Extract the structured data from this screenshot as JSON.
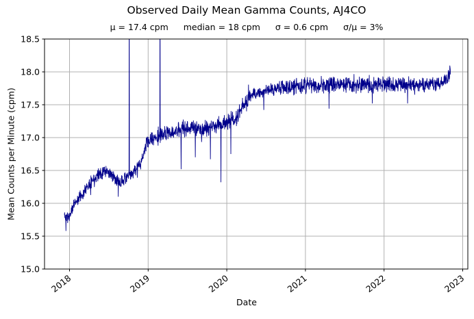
{
  "chart_data": {
    "type": "line",
    "title": "Observed Daily Mean Gamma Counts, AJ4CO",
    "stats": [
      "μ = 17.4 cpm",
      "median = 18 cpm",
      "σ = 0.6 cpm",
      "σ/μ = 3%"
    ],
    "xlabel": "Date",
    "ylabel": "Mean Counts per Minute (cpm)",
    "xlim": [
      2017.682,
      2023.065
    ],
    "ylim": [
      15.0,
      18.5
    ],
    "grid": true,
    "legend": "none",
    "x_ticks": [
      {
        "v": 2018,
        "label": "2018"
      },
      {
        "v": 2019,
        "label": "2019"
      },
      {
        "v": 2020,
        "label": "2020"
      },
      {
        "v": 2021,
        "label": "2021"
      },
      {
        "v": 2022,
        "label": "2022"
      },
      {
        "v": 2023,
        "label": "2023"
      }
    ],
    "y_ticks": [
      {
        "v": 15.0,
        "label": "15.0"
      },
      {
        "v": 15.5,
        "label": "15.5"
      },
      {
        "v": 16.0,
        "label": "16.0"
      },
      {
        "v": 16.5,
        "label": "16.5"
      },
      {
        "v": 17.0,
        "label": "17.0"
      },
      {
        "v": 17.5,
        "label": "17.5"
      },
      {
        "v": 18.0,
        "label": "18.0"
      },
      {
        "v": 18.5,
        "label": "18.5"
      }
    ],
    "colors": {
      "line": "#00008b",
      "grid": "#b0b0b0",
      "axis": "#000000",
      "background": "#ffffff"
    },
    "series": [
      {
        "name": "observed daily mean gamma counts",
        "units": "cpm",
        "x_start": 2017.935,
        "x_end": 2022.845,
        "sample_interval_days": 1,
        "noise_seed": 11,
        "outlier_probability": 0.05,
        "outlier_amplitude": 0.15,
        "trend_anchors": [
          [
            2017.935,
            15.82
          ],
          [
            2017.99,
            15.78
          ],
          [
            2018.06,
            16.0
          ],
          [
            2018.15,
            16.12
          ],
          [
            2018.25,
            16.3
          ],
          [
            2018.35,
            16.42
          ],
          [
            2018.45,
            16.5
          ],
          [
            2018.52,
            16.45
          ],
          [
            2018.6,
            16.33
          ],
          [
            2018.68,
            16.35
          ],
          [
            2018.78,
            16.44
          ],
          [
            2018.88,
            16.55
          ],
          [
            2018.93,
            16.7
          ],
          [
            2018.98,
            16.93
          ],
          [
            2019.05,
            16.98
          ],
          [
            2019.15,
            17.02
          ],
          [
            2019.3,
            17.08
          ],
          [
            2019.45,
            17.12
          ],
          [
            2019.55,
            17.16
          ],
          [
            2019.65,
            17.12
          ],
          [
            2019.75,
            17.12
          ],
          [
            2019.85,
            17.18
          ],
          [
            2019.95,
            17.22
          ],
          [
            2020.05,
            17.24
          ],
          [
            2020.12,
            17.3
          ],
          [
            2020.18,
            17.42
          ],
          [
            2020.25,
            17.55
          ],
          [
            2020.32,
            17.65
          ],
          [
            2020.42,
            17.7
          ],
          [
            2020.55,
            17.73
          ],
          [
            2020.75,
            17.76
          ],
          [
            2021.0,
            17.79
          ],
          [
            2021.5,
            17.8
          ],
          [
            2022.0,
            17.81
          ],
          [
            2022.4,
            17.79
          ],
          [
            2022.7,
            17.82
          ],
          [
            2022.8,
            17.88
          ],
          [
            2022.845,
            18.0
          ]
        ],
        "noise_amplitude_anchors": [
          [
            2017.93,
            0.1
          ],
          [
            2018.4,
            0.11
          ],
          [
            2018.95,
            0.11
          ],
          [
            2019.1,
            0.14
          ],
          [
            2019.95,
            0.15
          ],
          [
            2020.35,
            0.12
          ],
          [
            2021.0,
            0.14
          ],
          [
            2022.85,
            0.14
          ]
        ],
        "spike_events": [
          [
            2017.955,
            15.58
          ],
          [
            2018.62,
            16.1
          ],
          [
            2018.76,
            19.6
          ],
          [
            2019.15,
            19.6
          ],
          [
            2019.42,
            16.52
          ],
          [
            2019.6,
            16.7
          ],
          [
            2019.79,
            16.67
          ],
          [
            2019.925,
            16.32
          ],
          [
            2020.05,
            16.75
          ],
          [
            2020.25,
            17.4
          ],
          [
            2020.47,
            17.42
          ],
          [
            2021.3,
            17.44
          ],
          [
            2021.85,
            17.52
          ],
          [
            2022.3,
            17.52
          ]
        ]
      }
    ]
  }
}
